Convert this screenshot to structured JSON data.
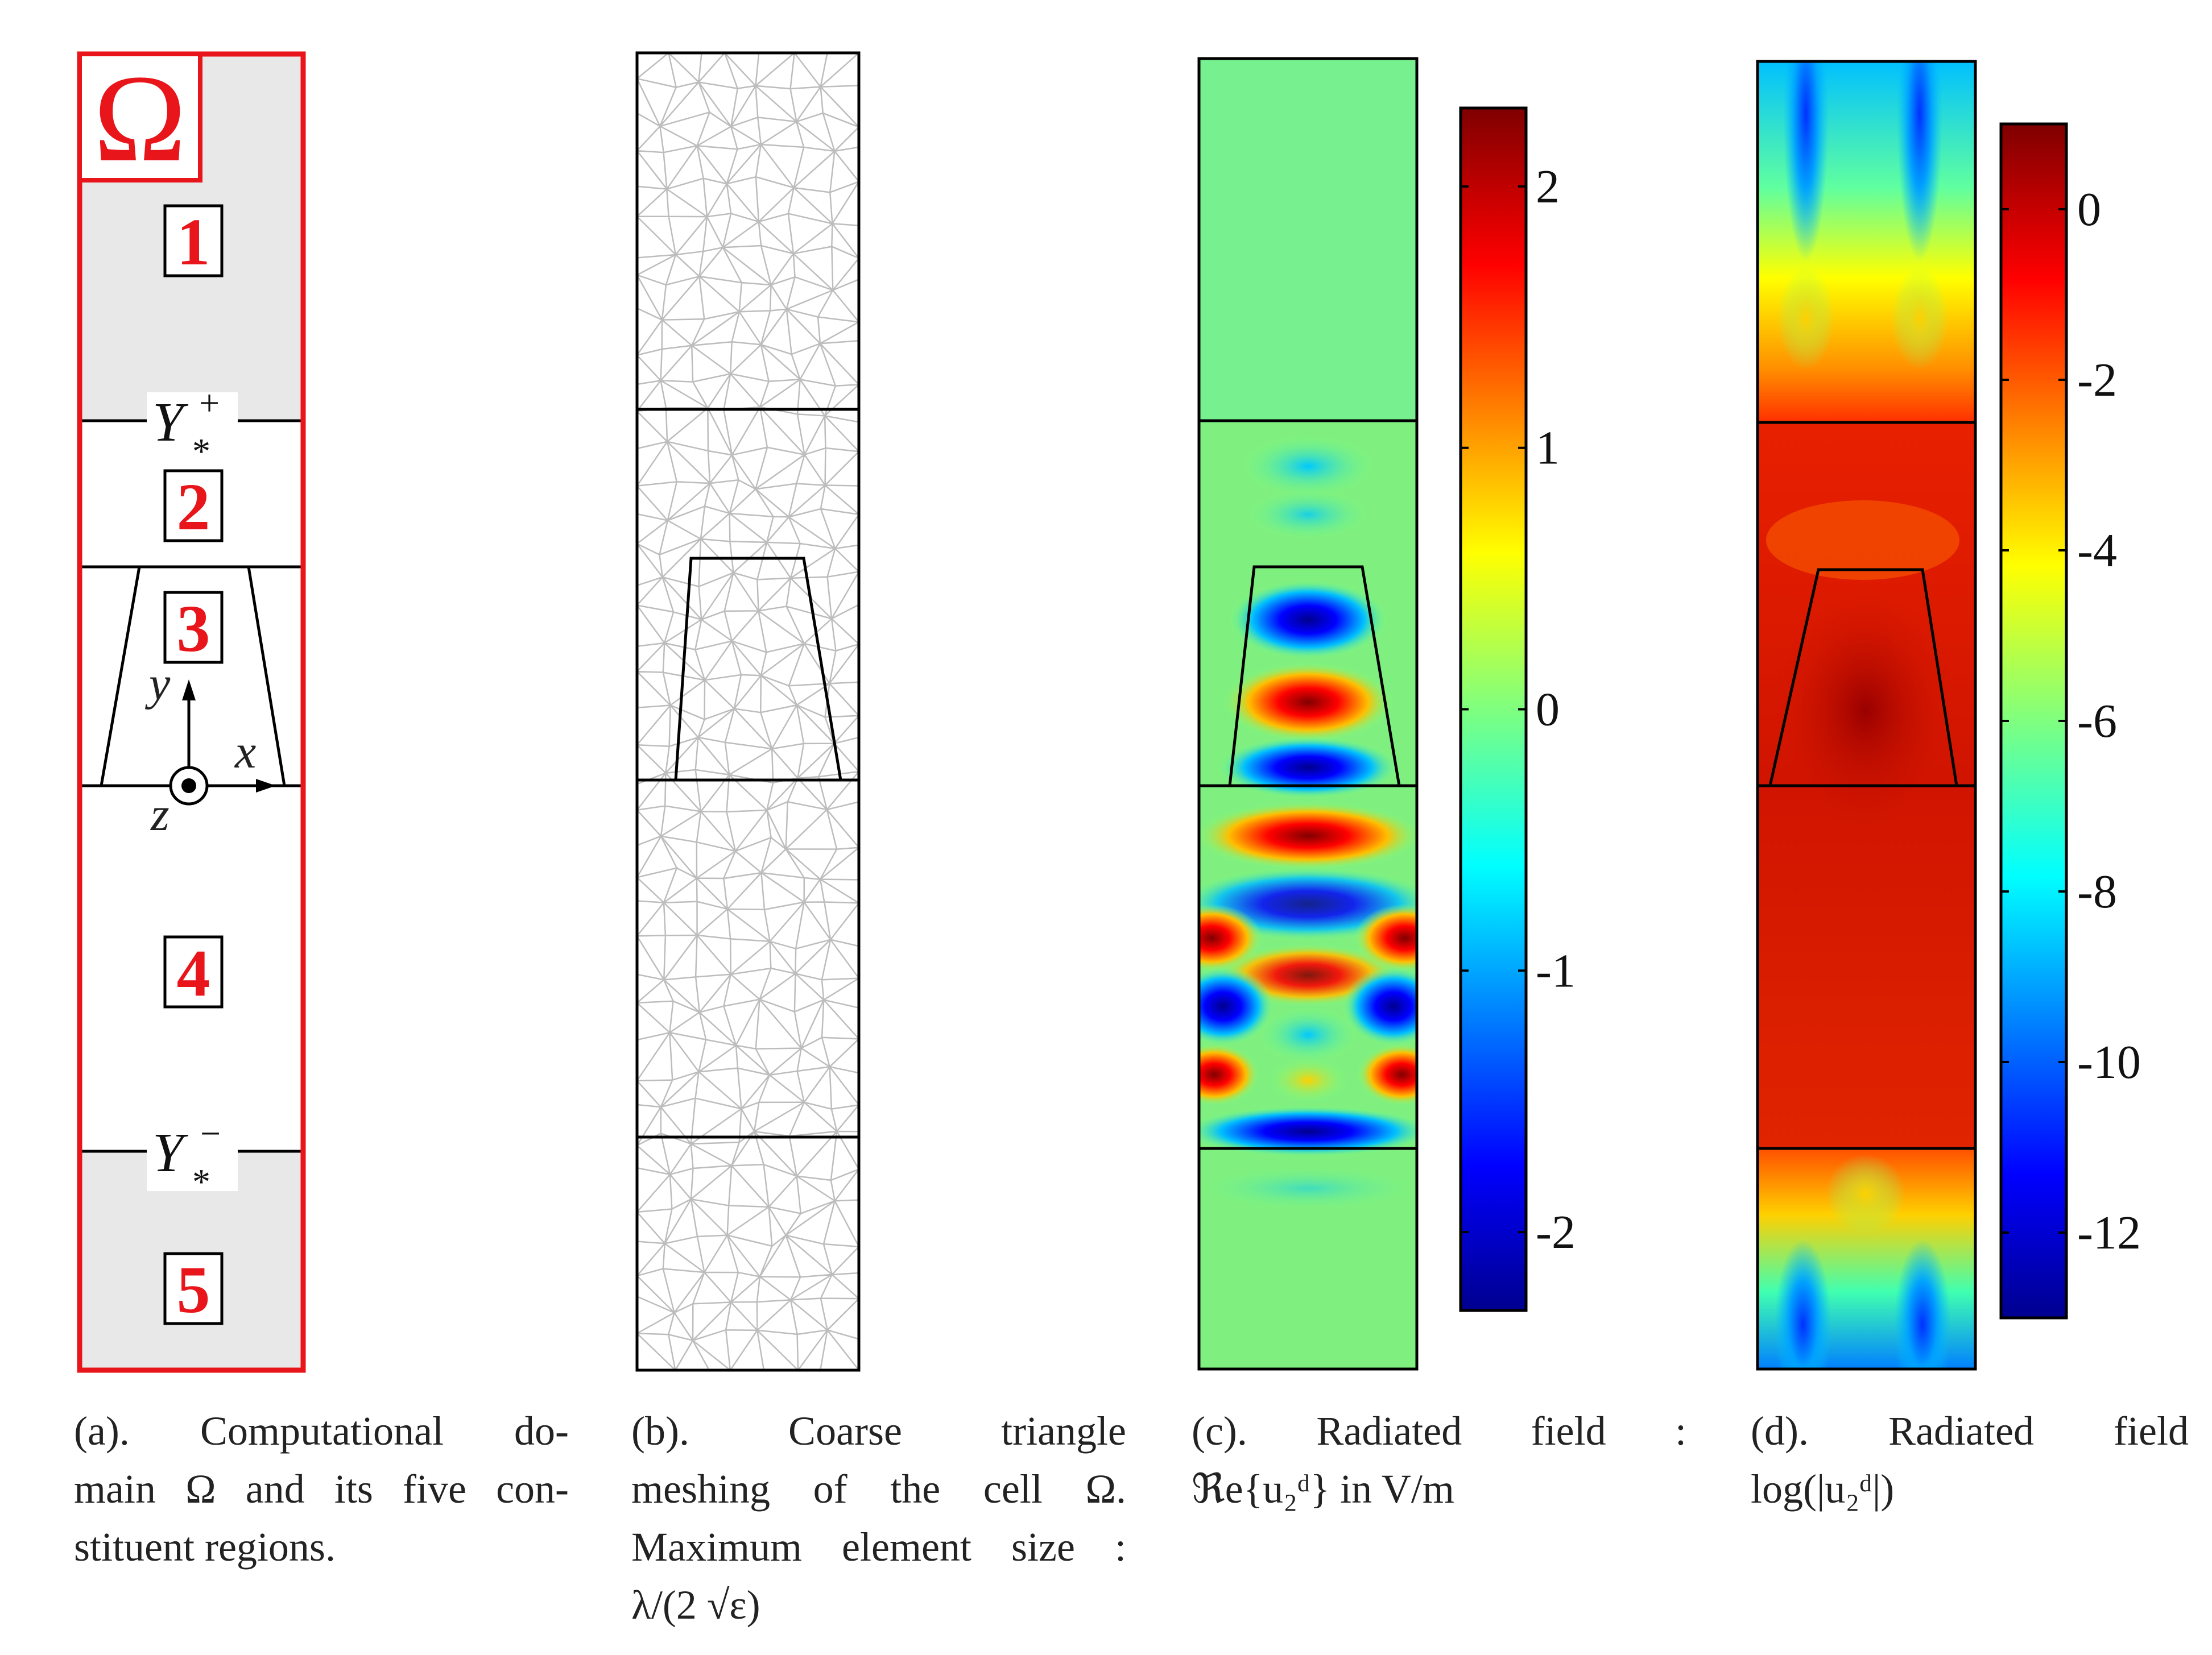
{
  "panel_a": {
    "omega": "Ω",
    "regions": [
      "1",
      "2",
      "3",
      "4",
      "5"
    ],
    "y_plus": "Y",
    "y_plus_sup": "+",
    "y_minus": "Y",
    "y_minus_sup": "−",
    "star": "*",
    "axis_y": "y",
    "axis_x": "x",
    "axis_z": "z"
  },
  "panel_c": {
    "colorbar_ticks": [
      "2",
      "1",
      "0",
      "-1",
      "-2"
    ],
    "colorbar_range": [
      -2.3,
      2.3
    ]
  },
  "panel_d": {
    "colorbar_ticks": [
      "0",
      "-2",
      "-4",
      "-6",
      "-8",
      "-10",
      "-12"
    ],
    "colorbar_range": [
      -13,
      1
    ]
  },
  "captions": {
    "a": [
      "(a). Computational do-",
      "main Ω and its five con-",
      "stituent regions."
    ],
    "b": [
      "(b). Coarse triangle",
      "meshing of the cell Ω.",
      "Maximum element size :",
      "λ/(2 √ε)"
    ],
    "c": [
      "(c). Radiated field :",
      "ℜe{u₂ᵈ} in V/m"
    ],
    "d": [
      "(d). Radiated field",
      "log(|u₂ᵈ|)"
    ]
  },
  "colors": {
    "red": "#e8151b",
    "gray_fill": "#e8e8e8",
    "mesh": "#bdbdbd",
    "field_bg": "#7ff07f"
  }
}
